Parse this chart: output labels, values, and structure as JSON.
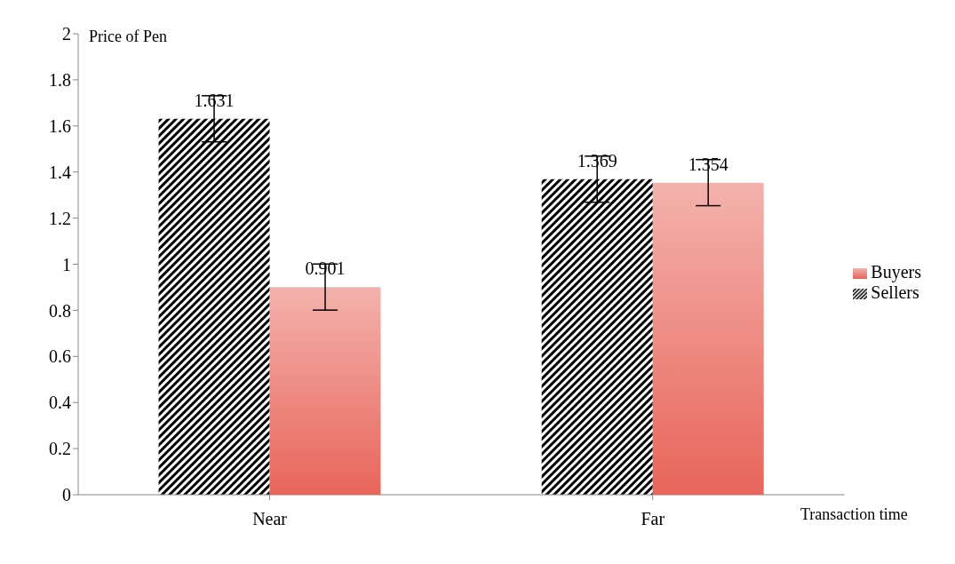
{
  "chart_data": {
    "type": "bar",
    "xlabel": "Transaction time",
    "ylabel": "Price of Pen",
    "categories": [
      "Near",
      "Far"
    ],
    "series": [
      {
        "name": "Sellers",
        "color": "#000000",
        "values": [
          1.631,
          1.369
        ],
        "errors": [
          0.1,
          0.1
        ]
      },
      {
        "name": "Buyers",
        "color": "#e8655a",
        "values": [
          0.901,
          1.354
        ],
        "errors": [
          0.1,
          0.1
        ]
      }
    ],
    "ylim": [
      0,
      2
    ],
    "yticks": [
      0,
      0.2,
      0.4,
      0.6,
      0.8,
      1,
      1.2,
      1.4,
      1.6,
      1.8,
      2
    ],
    "data_labels": true,
    "legend": "right",
    "grid": false
  }
}
